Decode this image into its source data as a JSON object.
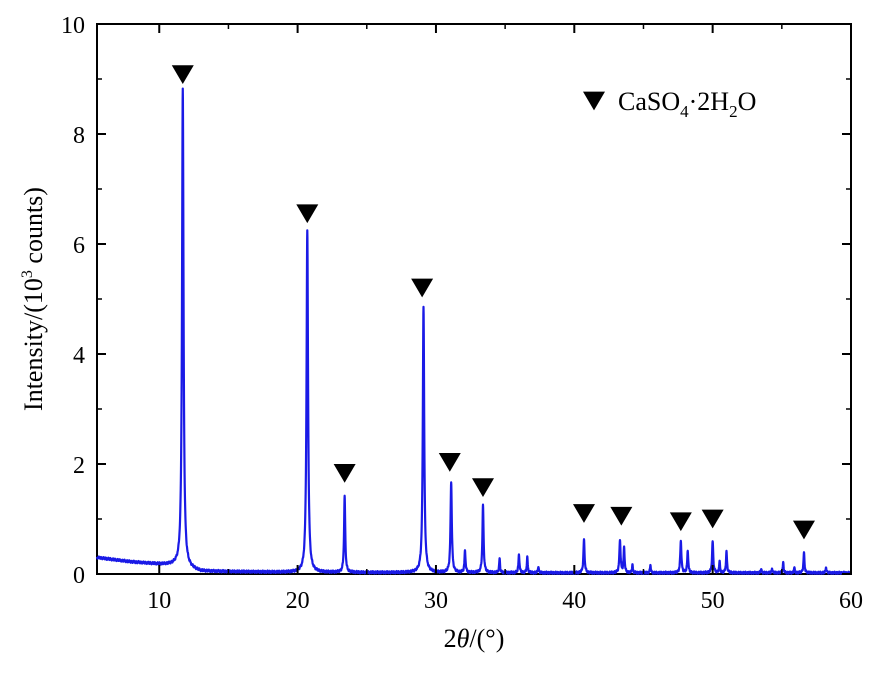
{
  "chart_data": {
    "type": "line",
    "title": "",
    "xlabel_prefix": "2",
    "xlabel_var": "θ",
    "xlabel_suffix": "/(°)",
    "ylabel_main": "Intensity/(10",
    "ylabel_sup": "3",
    "ylabel_end": " counts)",
    "xlim": [
      5.5,
      60
    ],
    "ylim": [
      0,
      10
    ],
    "xticks": [
      "10",
      "20",
      "30",
      "40",
      "50",
      "60"
    ],
    "yticks": [
      "0",
      "2",
      "4",
      "6",
      "8",
      "10"
    ],
    "grid": false,
    "legend": {
      "position": "top-right",
      "marker": "down-triangle",
      "label_main": "CaSO",
      "label_sub1": "4",
      "label_mid": "·2H",
      "label_sub2": "2",
      "label_end": "O"
    },
    "line_color": "#1a1ae6",
    "baseline": [
      [
        5.5,
        0.3
      ],
      [
        8,
        0.22
      ],
      [
        10,
        0.18
      ],
      [
        11.2,
        0.16
      ],
      [
        13,
        0.05
      ],
      [
        20,
        0.03
      ],
      [
        40,
        0.02
      ],
      [
        60,
        0.02
      ]
    ],
    "peaks": [
      {
        "x": 11.7,
        "y": 8.7,
        "w": 0.13
      },
      {
        "x": 20.7,
        "y": 6.2,
        "w": 0.13
      },
      {
        "x": 23.4,
        "y": 1.38,
        "w": 0.1
      },
      {
        "x": 29.1,
        "y": 4.85,
        "w": 0.12
      },
      {
        "x": 31.1,
        "y": 1.65,
        "w": 0.11
      },
      {
        "x": 32.1,
        "y": 0.4,
        "w": 0.09
      },
      {
        "x": 33.4,
        "y": 1.22,
        "w": 0.1
      },
      {
        "x": 34.6,
        "y": 0.25,
        "w": 0.08
      },
      {
        "x": 36.0,
        "y": 0.33,
        "w": 0.09
      },
      {
        "x": 36.6,
        "y": 0.28,
        "w": 0.08
      },
      {
        "x": 37.4,
        "y": 0.12,
        "w": 0.07
      },
      {
        "x": 40.7,
        "y": 0.6,
        "w": 0.1
      },
      {
        "x": 43.3,
        "y": 0.6,
        "w": 0.1
      },
      {
        "x": 43.6,
        "y": 0.45,
        "w": 0.09
      },
      {
        "x": 44.2,
        "y": 0.15,
        "w": 0.07
      },
      {
        "x": 45.5,
        "y": 0.15,
        "w": 0.07
      },
      {
        "x": 47.7,
        "y": 0.58,
        "w": 0.1
      },
      {
        "x": 48.2,
        "y": 0.4,
        "w": 0.09
      },
      {
        "x": 50.0,
        "y": 0.57,
        "w": 0.1
      },
      {
        "x": 50.5,
        "y": 0.2,
        "w": 0.08
      },
      {
        "x": 51.0,
        "y": 0.38,
        "w": 0.09
      },
      {
        "x": 53.5,
        "y": 0.08,
        "w": 0.07
      },
      {
        "x": 54.3,
        "y": 0.08,
        "w": 0.07
      },
      {
        "x": 55.1,
        "y": 0.18,
        "w": 0.08
      },
      {
        "x": 55.9,
        "y": 0.1,
        "w": 0.07
      },
      {
        "x": 56.6,
        "y": 0.36,
        "w": 0.09
      },
      {
        "x": 58.2,
        "y": 0.1,
        "w": 0.08
      }
    ],
    "markers": [
      {
        "x": 11.7,
        "y": 9.08
      },
      {
        "x": 20.7,
        "y": 6.55
      },
      {
        "x": 23.4,
        "y": 1.83
      },
      {
        "x": 29.0,
        "y": 5.2
      },
      {
        "x": 31.0,
        "y": 2.03
      },
      {
        "x": 33.4,
        "y": 1.57
      },
      {
        "x": 40.7,
        "y": 1.1
      },
      {
        "x": 43.4,
        "y": 1.05
      },
      {
        "x": 47.7,
        "y": 0.95
      },
      {
        "x": 50.0,
        "y": 1.0
      },
      {
        "x": 56.6,
        "y": 0.8
      }
    ]
  }
}
